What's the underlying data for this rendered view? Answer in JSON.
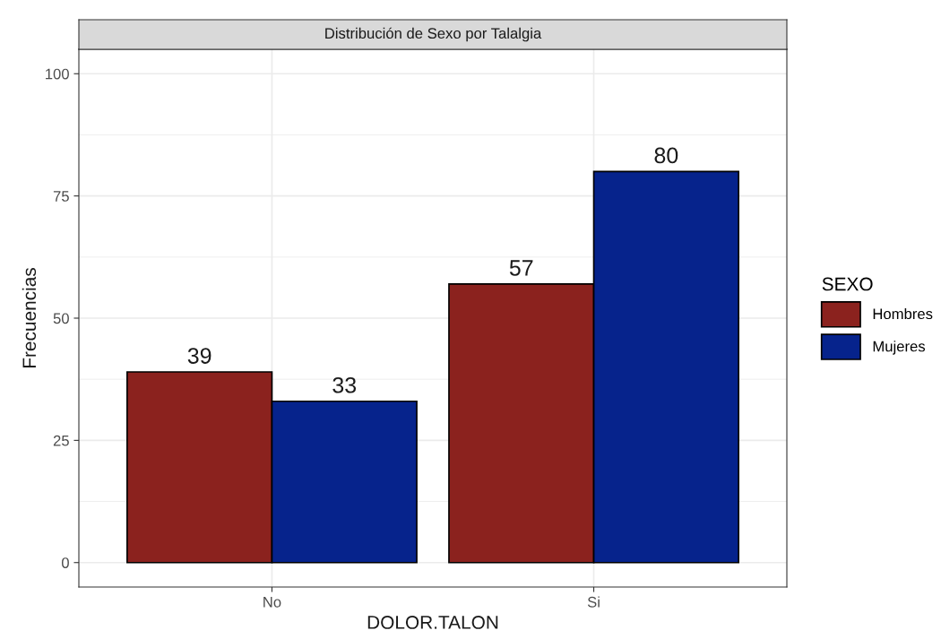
{
  "chart_data": {
    "type": "bar",
    "title": "Distribución de Sexo por Talalgia",
    "xlabel": "DOLOR.TALON",
    "ylabel": "Frecuencias",
    "legend_title": "SEXO",
    "categories": [
      "No",
      "Si"
    ],
    "series": [
      {
        "name": "Hombres",
        "color": "#8b221e",
        "values": [
          39,
          57
        ]
      },
      {
        "name": "Mujeres",
        "color": "#06238c",
        "values": [
          33,
          80
        ]
      }
    ],
    "ylim": [
      -5,
      105
    ],
    "yticks": [
      0,
      25,
      50,
      75,
      100
    ],
    "grid": true,
    "legend": "right",
    "data_labels": true
  }
}
